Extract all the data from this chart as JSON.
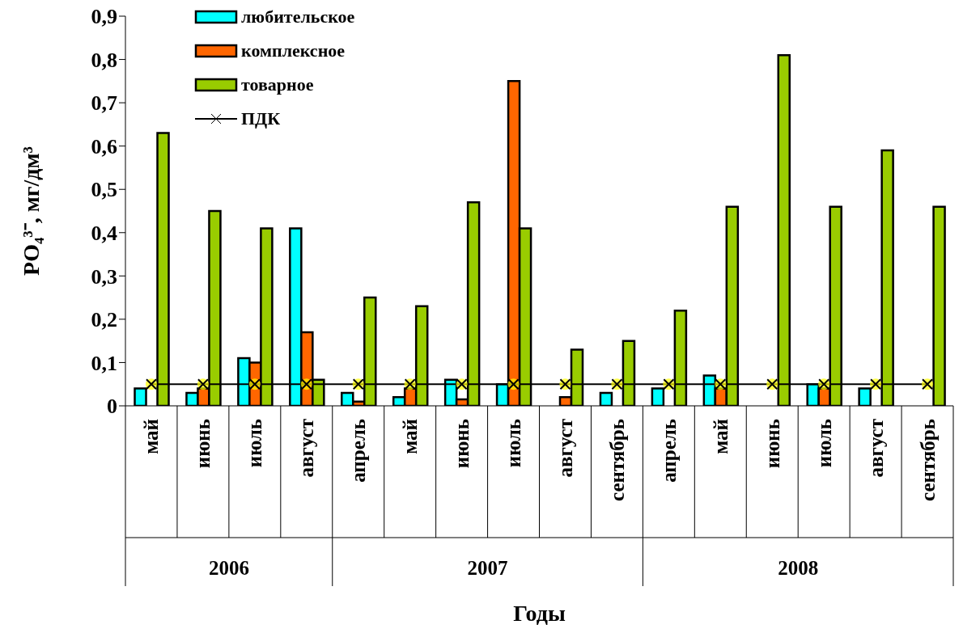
{
  "chart_data": {
    "type": "bar",
    "xlabel": "Годы",
    "ylabel": "PO₄³⁻, мг/дм³",
    "categories": [
      "май",
      "июнь",
      "июль",
      "август",
      "апрель",
      "май",
      "июнь",
      "июль",
      "август",
      "сентябрь",
      "апрель",
      "май",
      "июнь",
      "июль",
      "август",
      "сентябрь"
    ],
    "series": [
      {
        "name": "любительское",
        "color": "#00ffff",
        "values": [
          0.04,
          0.03,
          0.11,
          0.41,
          0.03,
          0.02,
          0.06,
          0.05,
          null,
          0.03,
          0.04,
          0.07,
          null,
          0.05,
          0.04,
          null
        ]
      },
      {
        "name": "комплексное",
        "color": "#ff6600",
        "values": [
          null,
          0.04,
          0.1,
          0.17,
          0.01,
          0.04,
          0.015,
          0.75,
          0.02,
          null,
          null,
          0.04,
          null,
          0.04,
          null,
          null
        ]
      },
      {
        "name": "товарное",
        "color": "#99cc00",
        "values": [
          0.63,
          0.45,
          0.41,
          0.06,
          0.25,
          0.23,
          0.47,
          0.41,
          0.13,
          0.15,
          0.22,
          0.46,
          0.81,
          0.46,
          0.59,
          0.46
        ]
      },
      {
        "name": "ПДК",
        "type": "line",
        "color": "#000000",
        "marker": "cross",
        "values": [
          0.05,
          0.05,
          0.05,
          0.05,
          0.05,
          0.05,
          0.05,
          0.05,
          0.05,
          0.05,
          0.05,
          0.05,
          0.05,
          0.05,
          0.05,
          0.05
        ]
      }
    ],
    "annotations": [
      "2006",
      "2007",
      "2008"
    ],
    "ylim": [
      0,
      0.9
    ],
    "yticks": [
      {
        "value": 0,
        "label": "0"
      },
      {
        "value": 0.1,
        "label": "0,1"
      },
      {
        "value": 0.2,
        "label": "0,2"
      },
      {
        "value": 0.3,
        "label": "0,3"
      },
      {
        "value": 0.4,
        "label": "0,4"
      },
      {
        "value": 0.5,
        "label": "0,5"
      },
      {
        "value": 0.6,
        "label": "0,6"
      },
      {
        "value": 0.7,
        "label": "0,7"
      },
      {
        "value": 0.8,
        "label": "0,8"
      },
      {
        "value": 0.9,
        "label": "0,9"
      }
    ],
    "grid": false,
    "legend": "top left"
  }
}
